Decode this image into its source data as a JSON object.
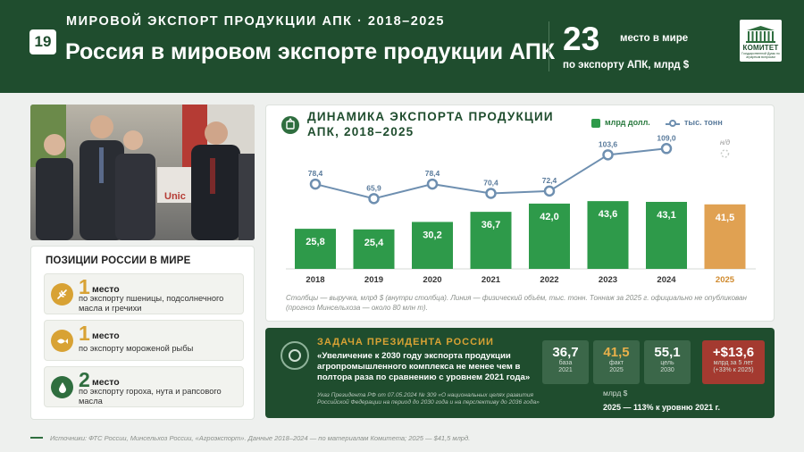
{
  "header": {
    "slide_number": "19",
    "supertitle": "МИРОВОЙ ЭКСПОРТ ПРОДУКЦИИ АПК · 2018–2025",
    "title": "Россия в мировом экспорте продукции АПК",
    "rank_value": "23",
    "rank_label_a": "место в мире",
    "rank_label_b": "по экспорту АПК, млрд $",
    "logo_word": "КОМИТЕТ",
    "logo_sub": "Государственной Думы по аграрным вопросам"
  },
  "positions": {
    "title": "ПОЗИЦИИ РОССИИ В МИРЕ",
    "items": [
      {
        "number": "1",
        "label": "место",
        "desc": "по экспорту пшеницы, подсолнечного масла и гречихи",
        "icon": "wheat-icon"
      },
      {
        "number": "1",
        "label": "место",
        "desc": "по экспорту мороженой рыбы",
        "icon": "fish-icon"
      },
      {
        "number": "2",
        "label": "место",
        "desc": "по экспорту гороха, нута и рапсового масла",
        "icon": "drop-icon"
      }
    ]
  },
  "chart_header": {
    "title": "ДИНАМИКА ЭКСПОРТА ПРОДУКЦИИ АПК, 2018–2025",
    "legend_bars": "млрд долл.",
    "legend_line": "тыс. тонн",
    "note": "Столбцы — выручка, млрд $ (внутри столбца). Линия — физический объём, тыс. тонн. Тоннаж за 2025 г. официально не опубликован (прогноз Минсельхоза — около 80 млн т)."
  },
  "chart_data": {
    "type": "bar",
    "categories": [
      "2018",
      "2019",
      "2020",
      "2021",
      "2022",
      "2023",
      "2024",
      "2025"
    ],
    "series": [
      {
        "name": "млрд долл.",
        "values": [
          25.8,
          25.4,
          30.2,
          36.7,
          42.0,
          43.6,
          43.1,
          41.5
        ],
        "labels": [
          "25,8",
          "25,4",
          "30,2",
          "36,7",
          "42,0",
          "43,6",
          "43,1",
          "41,5"
        ]
      },
      {
        "name": "тыс. тонн",
        "type": "line",
        "values": [
          78.4,
          65.9,
          78.4,
          70.4,
          72.4,
          103.6,
          109.0,
          null
        ],
        "labels": [
          "78,4",
          "65,9",
          "78,4",
          "70,4",
          "72,4",
          "103,6",
          "109,0",
          "н/д"
        ]
      }
    ],
    "highlight_category": "2025",
    "colors": {
      "bars": "#2e9a4a",
      "bar_highlight": "#e0a152",
      "line": "#6e8fb0"
    }
  },
  "task": {
    "heading": "ЗАДАЧА ПРЕЗИДЕНТА РОССИИ",
    "quote": "«Увеличение к 2030 году экспорта продукции агропромышленного комплекса не менее чем в полтора раза по сравнению с уровнем 2021 года»",
    "reference": "Указ Президента РФ от 07.05.2024 № 309 «О национальных целях развития Российской Федерации на период до 2030 года и на перспективу до 2036 года»",
    "stats": [
      {
        "value": "36,7",
        "label_a": "база",
        "label_b": "2021",
        "color": "#ffffff"
      },
      {
        "value": "41,5",
        "label_a": "факт",
        "label_b": "2025",
        "color": "#e8b04a"
      },
      {
        "value": "55,1",
        "label_a": "цель",
        "label_b": "2030",
        "color": "#ffffff"
      }
    ],
    "delta_value": "+$13,6",
    "delta_label_a": "млрд за 5 лет",
    "delta_label_b": "(+33% к 2025)",
    "unit": "млрд $",
    "level": "2025 — 113% к уровню 2021 г."
  },
  "footer": {
    "sources": "Источники: ФТС России, Минсельхоз России, «Агроэкспорт». Данные 2018–2024 — по материалам Комитета; 2025 — $41,5 млрд."
  }
}
